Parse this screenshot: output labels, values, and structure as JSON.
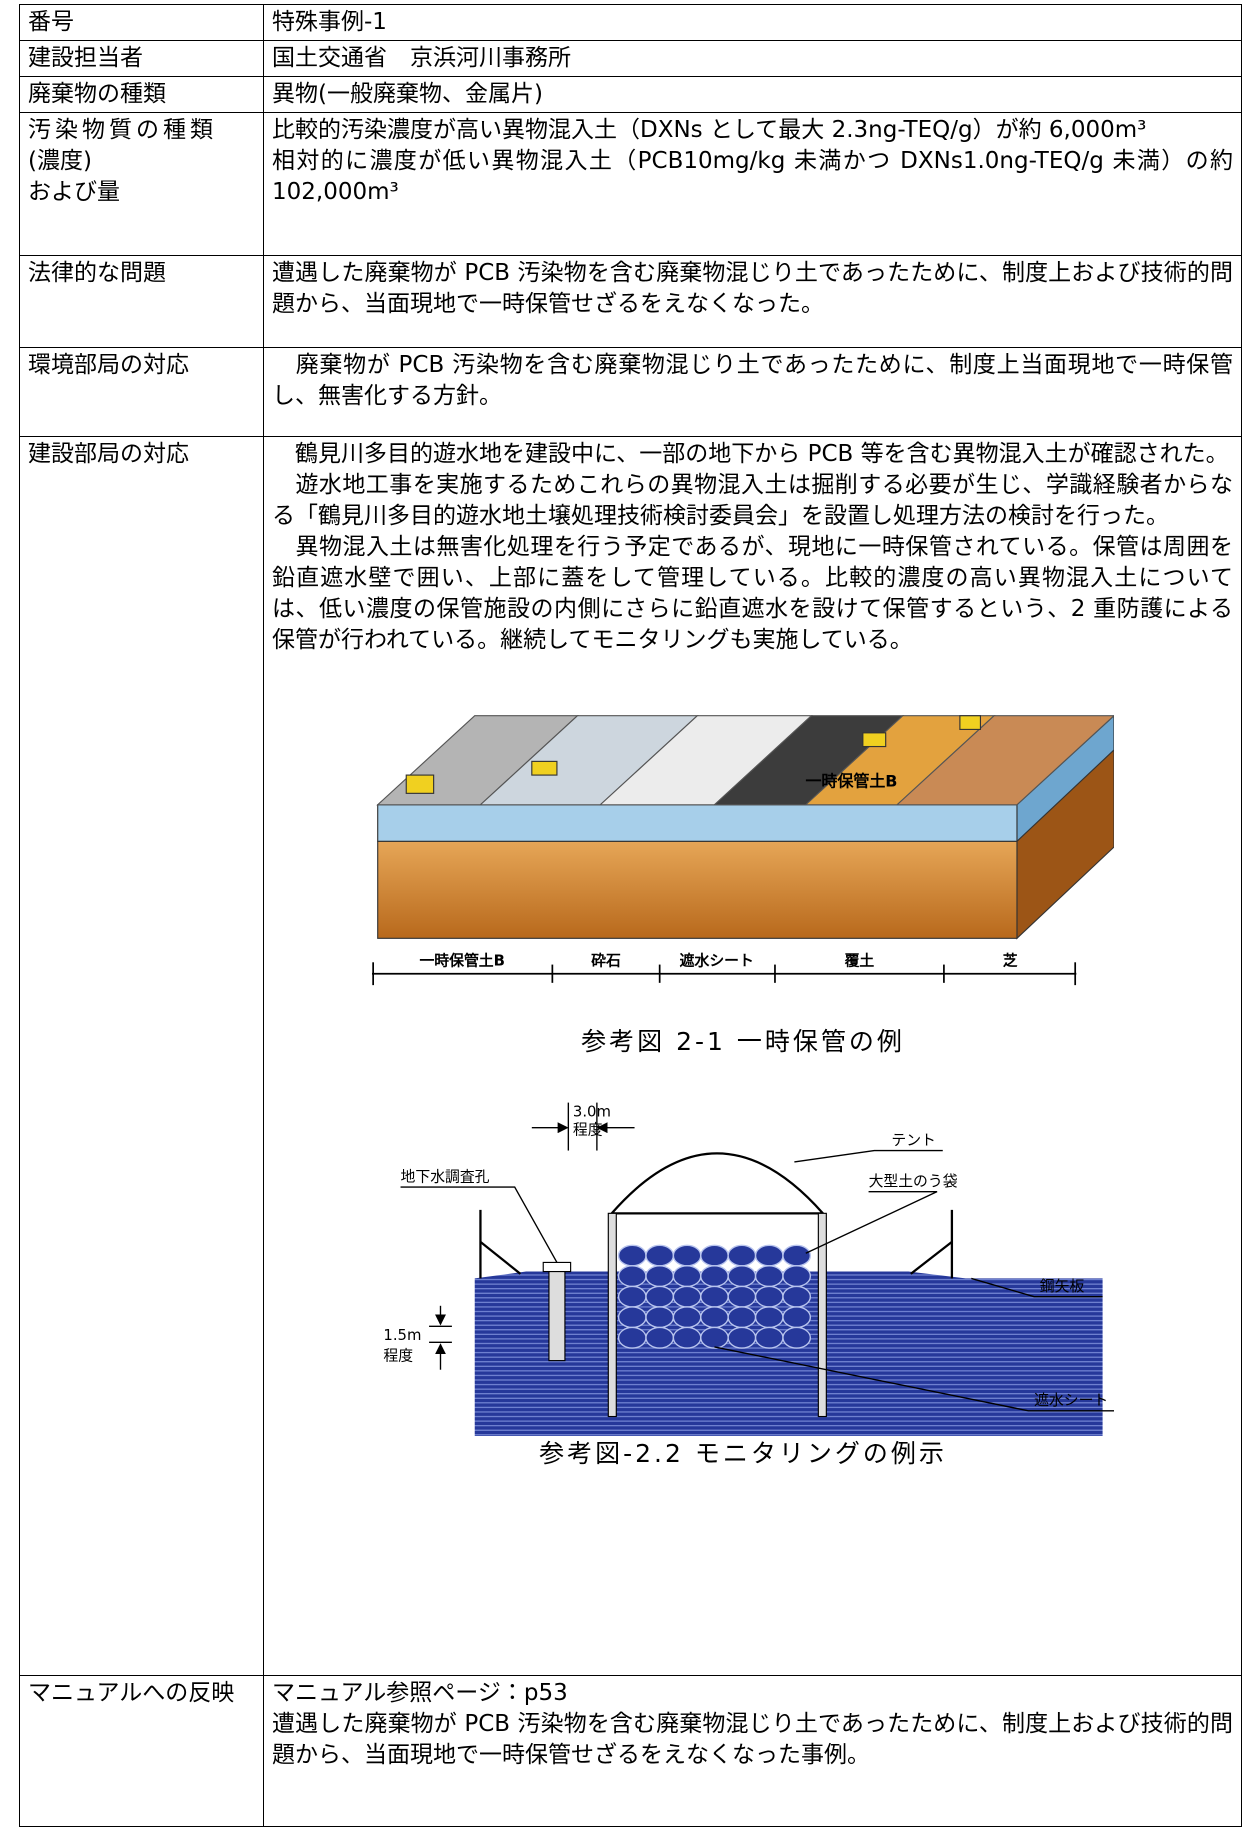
{
  "table": {
    "rows": [
      {
        "label": "番号",
        "content": [
          "特殊事例-1"
        ]
      },
      {
        "label": "建設担当者",
        "content": [
          "国土交通省　京浜河川事務所"
        ]
      },
      {
        "label": "廃棄物の種類",
        "content": [
          "異物(一般廃棄物、金属片)"
        ]
      },
      {
        "label": [
          "汚染物質の種類",
          "(濃度)",
          "および量"
        ],
        "content": [
          "比較的汚染濃度が高い異物混入土（DXNs として最大 2.3ng-TEQ/g）が約 6,000m³",
          "相対的に濃度が低い異物混入土（PCB10mg/kg 未満かつ DXNs1.0ng-TEQ/g 未満）の約 102,000m³"
        ]
      },
      {
        "label": "法律的な問題",
        "content": [
          "遭遇した廃棄物が PCB 汚染物を含む廃棄物混じり土であったために、制度上および技術的問題から、当面現地で一時保管せざるをえなくなった。"
        ]
      },
      {
        "label": "環境部局の対応",
        "content": [
          "　廃棄物が PCB 汚染物を含む廃棄物混じり土であったために、制度上当面現地で一時保管し、無害化する方針。"
        ]
      },
      {
        "label": "建設部局の対応",
        "content": [
          "　鶴見川多目的遊水地を建設中に、一部の地下から PCB 等を含む異物混入土が確認された。",
          "　遊水地工事を実施するためこれらの異物混入土は掘削する必要が生じ、学識経験者からなる「鶴見川多目的遊水地土壌処理技術検討委員会」を設置し処理方法の検討を行った。",
          "　異物混入土は無害化処理を行う予定であるが、現地に一時保管されている。保管は周囲を鉛直遮水壁で囲い、上部に蓋をして管理している。比較的濃度の高い異物混入土については、低い濃度の保管施設の内側にさらに鉛直遮水を設けて保管するという、2 重防護による保管が行われている。継続してモニタリングも実施している。"
        ],
        "figures": [
          {
            "slab_label": "一時保管土B",
            "segments": [
              "一時保管土B",
              "砕石",
              "遮水シート",
              "覆土",
              "芝"
            ],
            "caption": "参考図 2-1 一時保管の例"
          },
          {
            "labels": {
              "width": "3.0m",
              "width_note": "程度",
              "tent": "テント",
              "well": "地下水調査孔",
              "bags": "大型土のう袋",
              "sheet_pile": "鋼矢板",
              "depth": "1.5m",
              "depth_note": "程度",
              "liner": "遮水シート"
            },
            "caption": "参考図-2.2 モニタリングの例示"
          }
        ]
      },
      {
        "label": "マニュアルへの反映",
        "content": [
          "マニュアル参照ページ：p53",
          "遭遇した廃棄物が PCB 汚染物を含む廃棄物混じり土であったために、制度上および技術的問題から、当面現地で一時保管せざるをえなくなった事例。"
        ]
      }
    ]
  }
}
